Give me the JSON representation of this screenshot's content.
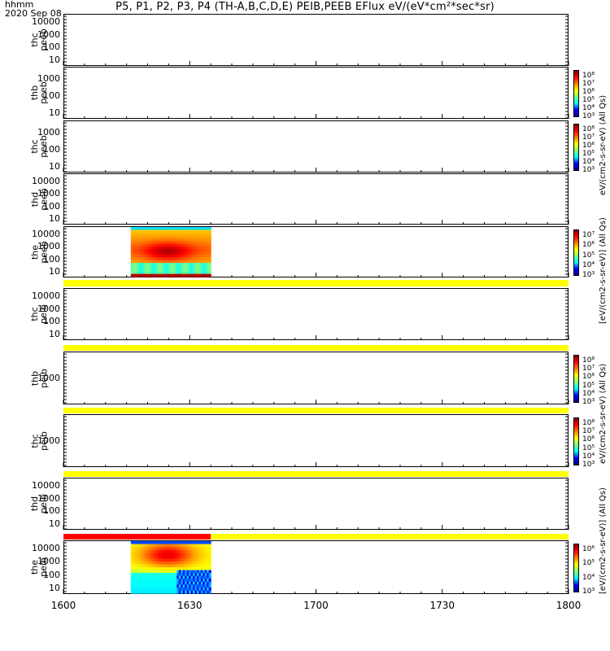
{
  "title": "P5, P1, P2, P3, P4 (TH-A,B,C,D,E) PEIB,PEEB EFlux eV/(eV*cm²*sec*sr)",
  "footer": {
    "axis_name": "hhmm",
    "date": "2020 Sep 08"
  },
  "colors": {
    "flag_yellow": "#ffff00",
    "flag_red": "#ff0000"
  },
  "colorbar_titles": [
    "eV/(cm2-s-sr-eV) (All Qs)",
    "[eV/(cm2-s-sr-eV)] (All Qs)",
    "eV/(cm2-s-sr-eV) (All Qs)",
    "[eV/(cm2-s-sr-eV)] (All Qs)"
  ],
  "chart_data": [
    {
      "type": "heatmap",
      "panel": "thc peeb",
      "ylabel": [
        "thc",
        "peeb"
      ],
      "yscale": "log",
      "yticks": [
        "10",
        "100",
        "1000",
        "10000"
      ],
      "xlim": [
        "1600",
        "1800"
      ],
      "data_present": false
    },
    {
      "type": "heatmap",
      "panel": "thb peeb",
      "ylabel": [
        "thb",
        "peeb"
      ],
      "yscale": "log",
      "yticks": [
        "10",
        "100",
        "1000"
      ],
      "colorbar": [
        "10³",
        "10⁴",
        "10⁵",
        "10⁶",
        "10⁷",
        "10⁸"
      ],
      "data_present": false
    },
    {
      "type": "heatmap",
      "panel": "thc peeb",
      "ylabel": [
        "thc",
        "peeb"
      ],
      "yscale": "log",
      "yticks": [
        "10",
        "100",
        "1000"
      ],
      "colorbar": [
        "10³",
        "10⁴",
        "10⁵",
        "10⁶",
        "10⁷",
        "10⁸"
      ],
      "data_present": false
    },
    {
      "type": "heatmap",
      "panel": "thd peeb",
      "ylabel": [
        "thd",
        "peeb"
      ],
      "yscale": "log",
      "yticks": [
        "10",
        "100",
        "1000",
        "10000"
      ],
      "data_present": false
    },
    {
      "type": "heatmap",
      "panel": "the peeb",
      "ylabel": [
        "the",
        "peeb"
      ],
      "yscale": "log",
      "yticks": [
        "10",
        "100",
        "1000",
        "10000"
      ],
      "colorbar": [
        "10³",
        "10⁴",
        "10⁵",
        "10⁶",
        "10⁷"
      ],
      "data_present": true,
      "data_time_range": [
        "1616",
        "1635"
      ]
    },
    {
      "type": "heatmap",
      "panel": "thc peib",
      "ylabel": [
        "thc",
        "peib"
      ],
      "yscale": "log",
      "yticks": [
        "10",
        "100",
        "1000",
        "10000"
      ],
      "data_present": false
    },
    {
      "type": "heatmap",
      "panel": "thb peib",
      "ylabel": [
        "thb",
        "peib"
      ],
      "yscale": "log",
      "yticks": [
        "1000"
      ],
      "colorbar": [
        "10³",
        "10⁴",
        "10⁵",
        "10⁶",
        "10⁷",
        "10⁸"
      ],
      "data_present": false
    },
    {
      "type": "heatmap",
      "panel": "thc peib",
      "ylabel": [
        "thc",
        "peib"
      ],
      "yscale": "log",
      "yticks": [
        "1000"
      ],
      "colorbar": [
        "10³",
        "10⁴",
        "10⁵",
        "10⁶",
        "10⁷",
        "10⁸"
      ],
      "data_present": false
    },
    {
      "type": "heatmap",
      "panel": "thd peib",
      "ylabel": [
        "thd",
        "peib"
      ],
      "yscale": "log",
      "yticks": [
        "10",
        "100",
        "1000",
        "10000"
      ],
      "data_present": false
    },
    {
      "type": "heatmap",
      "panel": "the peib",
      "ylabel": [
        "the",
        "peib"
      ],
      "yscale": "log",
      "yticks": [
        "10",
        "100",
        "1000",
        "10000"
      ],
      "colorbar": [
        "10³",
        "10⁴",
        "10⁵",
        "10⁶"
      ],
      "data_present": true,
      "data_time_range": [
        "1616",
        "1635"
      ]
    }
  ],
  "x_axis": {
    "ticks": [
      "1600",
      "1630",
      "1700",
      "1730",
      "1800"
    ],
    "range": [
      1600,
      1800
    ]
  }
}
